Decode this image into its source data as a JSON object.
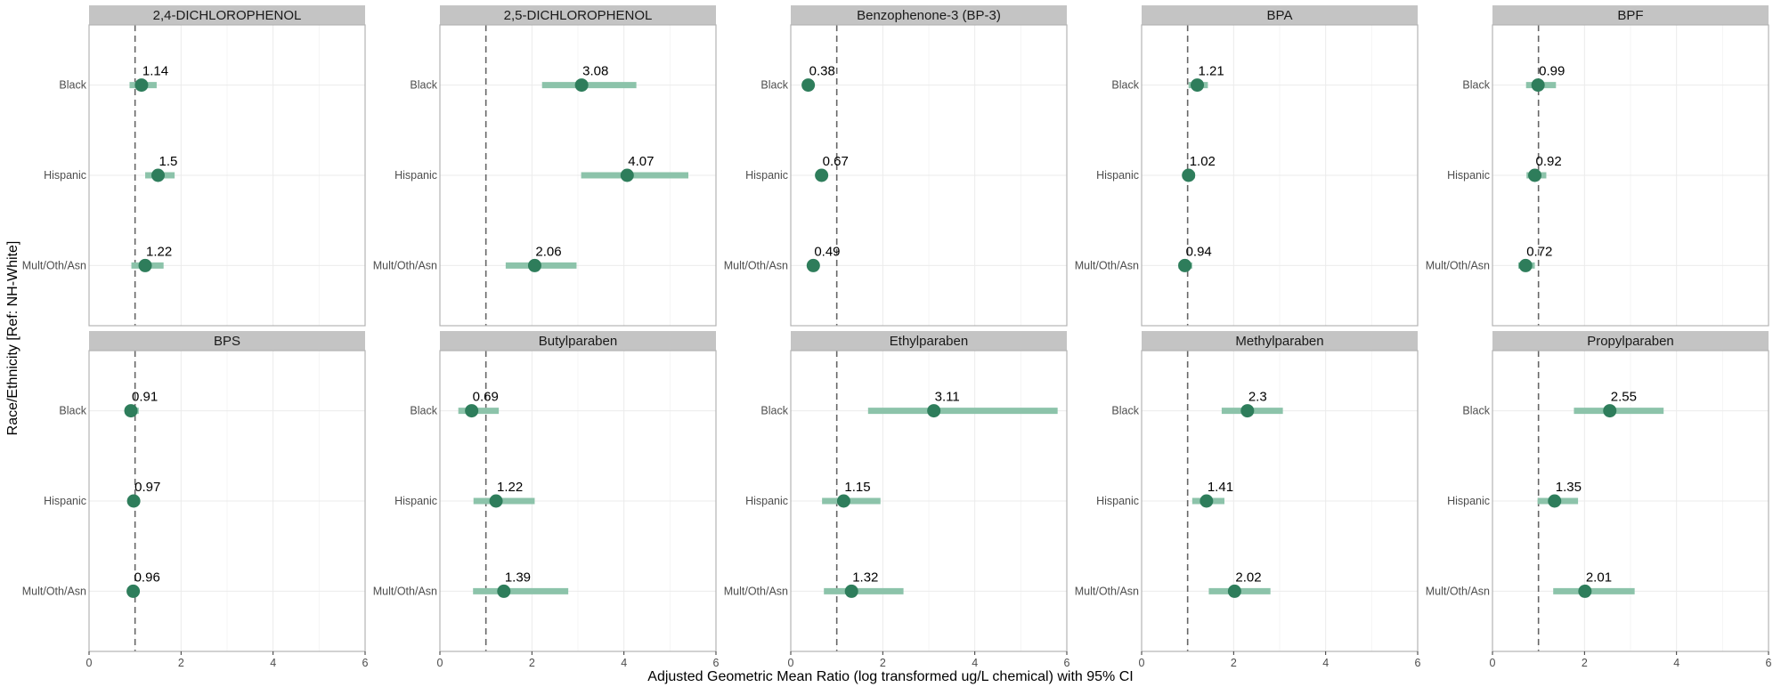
{
  "chart_data": {
    "type": "forest",
    "xlabel": "Adjusted Geometric Mean Ratio (log transformed ug/L chemical) with 95% CI",
    "ylabel": "Race/Ethnicity [Ref: NH-White]",
    "xlim": [
      0,
      6
    ],
    "xticks": [
      "0",
      "2",
      "4",
      "6"
    ],
    "reference_line": 1,
    "categories": [
      "Black",
      "Hispanic",
      "Mult/Oth/Asn"
    ],
    "colors": {
      "point": "#2e7d5b",
      "ci": "#8cc3aa",
      "ref_line": "#666666",
      "strip": "#c4c4c4",
      "panel_border": "#b3b3b3",
      "grid": "#ebebeb"
    },
    "panels": [
      {
        "title": "2,4-DICHLOROPHENOL",
        "points": [
          {
            "category": "Black",
            "value": 1.14,
            "label": "1.14",
            "ci": [
              0.88,
              1.47
            ]
          },
          {
            "category": "Hispanic",
            "value": 1.5,
            "label": "1.5",
            "ci": [
              1.22,
              1.86
            ]
          },
          {
            "category": "Mult/Oth/Asn",
            "value": 1.22,
            "label": "1.22",
            "ci": [
              0.92,
              1.62
            ]
          }
        ]
      },
      {
        "title": "2,5-DICHLOROPHENOL",
        "points": [
          {
            "category": "Black",
            "value": 3.08,
            "label": "3.08",
            "ci": [
              2.22,
              4.27
            ]
          },
          {
            "category": "Hispanic",
            "value": 4.07,
            "label": "4.07",
            "ci": [
              3.07,
              5.4
            ]
          },
          {
            "category": "Mult/Oth/Asn",
            "value": 2.06,
            "label": "2.06",
            "ci": [
              1.43,
              2.97
            ]
          }
        ]
      },
      {
        "title": "Benzophenone-3 (BP-3)",
        "points": [
          {
            "category": "Black",
            "value": 0.38,
            "label": "0.38",
            "ci": [
              0.3,
              0.46
            ]
          },
          {
            "category": "Hispanic",
            "value": 0.67,
            "label": "0.67",
            "ci": [
              0.56,
              0.8
            ]
          },
          {
            "category": "Mult/Oth/Asn",
            "value": 0.49,
            "label": "0.49",
            "ci": [
              0.4,
              0.6
            ]
          }
        ]
      },
      {
        "title": "BPA",
        "points": [
          {
            "category": "Black",
            "value": 1.21,
            "label": "1.21",
            "ci": [
              1.02,
              1.44
            ]
          },
          {
            "category": "Hispanic",
            "value": 1.02,
            "label": "1.02",
            "ci": [
              0.9,
              1.16
            ]
          },
          {
            "category": "Mult/Oth/Asn",
            "value": 0.94,
            "label": "0.94",
            "ci": [
              0.8,
              1.1
            ]
          }
        ]
      },
      {
        "title": "BPF",
        "points": [
          {
            "category": "Black",
            "value": 0.99,
            "label": "0.99",
            "ci": [
              0.73,
              1.38
            ]
          },
          {
            "category": "Hispanic",
            "value": 0.92,
            "label": "0.92",
            "ci": [
              0.74,
              1.17
            ]
          },
          {
            "category": "Mult/Oth/Asn",
            "value": 0.72,
            "label": "0.72",
            "ci": [
              0.56,
              0.92
            ]
          }
        ]
      },
      {
        "title": "BPS",
        "points": [
          {
            "category": "Black",
            "value": 0.91,
            "label": "0.91",
            "ci": [
              0.78,
              1.08
            ]
          },
          {
            "category": "Hispanic",
            "value": 0.97,
            "label": "0.97",
            "ci": [
              0.85,
              1.1
            ]
          },
          {
            "category": "Mult/Oth/Asn",
            "value": 0.96,
            "label": "0.96",
            "ci": [
              0.85,
              1.08
            ]
          }
        ]
      },
      {
        "title": "Butylparaben",
        "points": [
          {
            "category": "Black",
            "value": 0.69,
            "label": "0.69",
            "ci": [
              0.4,
              1.28
            ]
          },
          {
            "category": "Hispanic",
            "value": 1.22,
            "label": "1.22",
            "ci": [
              0.73,
              2.06
            ]
          },
          {
            "category": "Mult/Oth/Asn",
            "value": 1.39,
            "label": "1.39",
            "ci": [
              0.72,
              2.79
            ]
          }
        ]
      },
      {
        "title": "Ethylparaben",
        "points": [
          {
            "category": "Black",
            "value": 3.11,
            "label": "3.11",
            "ci": [
              1.68,
              5.8
            ]
          },
          {
            "category": "Hispanic",
            "value": 1.15,
            "label": "1.15",
            "ci": [
              0.68,
              1.95
            ]
          },
          {
            "category": "Mult/Oth/Asn",
            "value": 1.32,
            "label": "1.32",
            "ci": [
              0.72,
              2.45
            ]
          }
        ]
      },
      {
        "title": "Methylparaben",
        "points": [
          {
            "category": "Black",
            "value": 2.3,
            "label": "2.3",
            "ci": [
              1.74,
              3.07
            ]
          },
          {
            "category": "Hispanic",
            "value": 1.41,
            "label": "1.41",
            "ci": [
              1.1,
              1.8
            ]
          },
          {
            "category": "Mult/Oth/Asn",
            "value": 2.02,
            "label": "2.02",
            "ci": [
              1.46,
              2.8
            ]
          }
        ]
      },
      {
        "title": "Propylparaben",
        "points": [
          {
            "category": "Black",
            "value": 2.55,
            "label": "2.55",
            "ci": [
              1.77,
              3.72
            ]
          },
          {
            "category": "Hispanic",
            "value": 1.35,
            "label": "1.35",
            "ci": [
              0.98,
              1.86
            ]
          },
          {
            "category": "Mult/Oth/Asn",
            "value": 2.01,
            "label": "2.01",
            "ci": [
              1.32,
              3.09
            ]
          }
        ]
      }
    ]
  }
}
